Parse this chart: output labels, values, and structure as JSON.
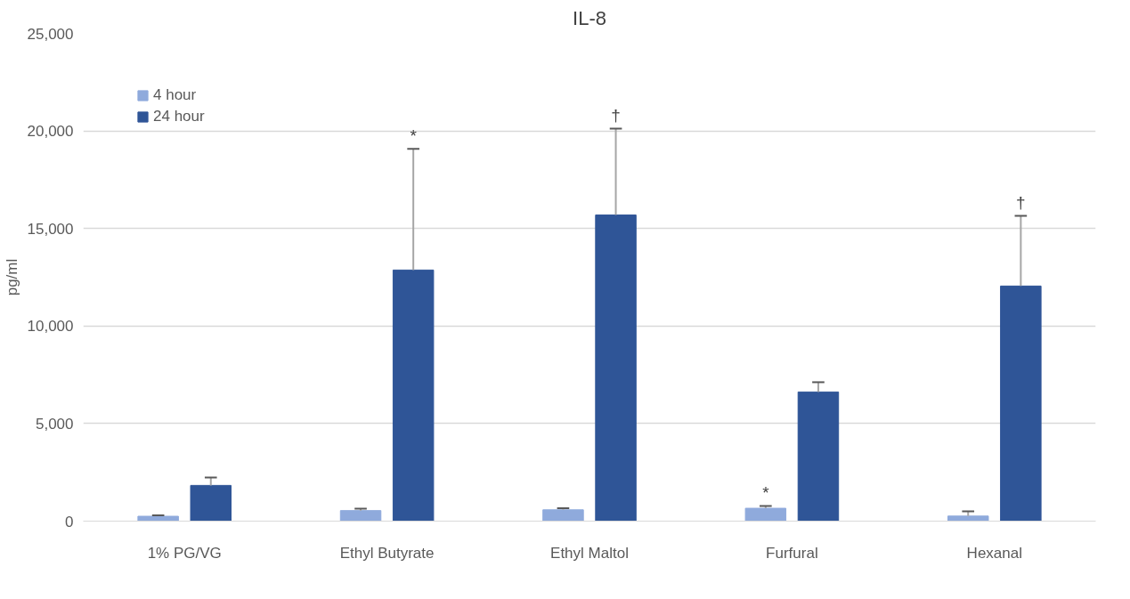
{
  "chart_data": {
    "type": "bar",
    "title": "IL-8",
    "ylabel": "pg/ml",
    "categories": [
      "1% PG/VG",
      "Ethyl Butyrate",
      "Ethyl Maltol",
      "Furfural",
      "Hexanal"
    ],
    "series": [
      {
        "name": "4 hour",
        "color": "#8faadc",
        "values": [
          250,
          540,
          580,
          660,
          260
        ],
        "errors": [
          [
            250,
            300
          ],
          [
            540,
            640
          ],
          [
            580,
            660
          ],
          [
            660,
            780
          ],
          [
            260,
            500
          ]
        ]
      },
      {
        "name": "24 hour",
        "color": "#2f5597",
        "values": [
          1830,
          12870,
          15690,
          6620,
          12050
        ],
        "errors": [
          [
            1830,
            2230
          ],
          [
            12870,
            19080
          ],
          [
            15690,
            20120
          ],
          [
            6620,
            7120
          ],
          [
            12050,
            15650
          ]
        ]
      }
    ],
    "ylim": [
      0,
      25000
    ],
    "yticks": [
      0,
      {
        "value": 5000,
        "label": "5,000"
      },
      {
        "value": 10000,
        "label": "10,000"
      },
      {
        "value": 15000,
        "label": "15,000"
      },
      {
        "value": 20000,
        "label": "20,000"
      },
      {
        "value": 25000,
        "label": "25,000"
      }
    ],
    "grid": "y",
    "legend": "top left",
    "annotations": [
      "*",
      "†",
      "*",
      "†"
    ]
  }
}
